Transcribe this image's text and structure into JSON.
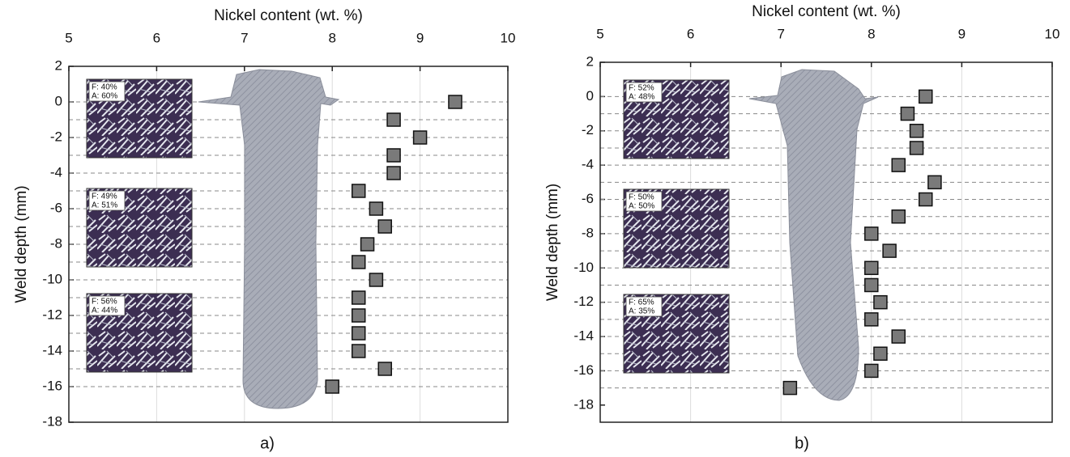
{
  "chart_data": [
    {
      "type": "scatter",
      "label": "a)",
      "xlabel": "Nickel content (wt. %)",
      "ylabel": "Weld depth (mm)",
      "xlim": [
        5,
        10
      ],
      "xticks": [
        5,
        6,
        7,
        8,
        9,
        10
      ],
      "ylim": [
        -18,
        2
      ],
      "yticks": [
        2,
        0,
        -2,
        -4,
        -6,
        -8,
        -10,
        -12,
        -14,
        -16,
        -18
      ],
      "grid": true,
      "color": "#7a7a7a",
      "x": [
        9.4,
        8.7,
        9.0,
        8.7,
        8.7,
        8.3,
        8.5,
        8.6,
        8.4,
        8.3,
        8.5,
        8.3,
        8.3,
        8.3,
        8.3,
        8.6,
        8.0
      ],
      "y": [
        0,
        -1,
        -2,
        -3,
        -4,
        -5,
        -6,
        -7,
        -8,
        -9,
        -10,
        -11,
        -12,
        -13,
        -14,
        -15,
        -16
      ],
      "annotations": [
        [
          "F: 40%",
          "A: 60%"
        ],
        [
          "F: 49%",
          "A: 51%"
        ],
        [
          "F: 56%",
          "A: 44%"
        ]
      ]
    },
    {
      "type": "scatter",
      "label": "b)",
      "xlabel": "Nickel content (wt. %)",
      "ylabel": "Weld depth (mm)",
      "xlim": [
        5,
        10
      ],
      "xticks": [
        5,
        6,
        7,
        8,
        9,
        10
      ],
      "ylim": [
        -19,
        2
      ],
      "yticks": [
        2,
        0,
        -2,
        -4,
        -6,
        -8,
        -10,
        -12,
        -14,
        -16,
        -18
      ],
      "grid": true,
      "color": "#7a7a7a",
      "x": [
        8.6,
        8.4,
        8.5,
        8.5,
        8.3,
        8.7,
        8.6,
        8.3,
        8.0,
        8.2,
        8.0,
        8.0,
        8.1,
        8.0,
        8.3,
        8.1,
        8.0,
        7.1
      ],
      "y": [
        0,
        -1,
        -2,
        -3,
        -4,
        -5,
        -6,
        -7,
        -8,
        -9,
        -10,
        -11,
        -12,
        -13,
        -14,
        -15,
        -16,
        -17
      ],
      "annotations": [
        [
          "F: 52%",
          "A: 48%"
        ],
        [
          "F: 50%",
          "A: 50%"
        ],
        [
          "F: 65%",
          "A: 35%"
        ]
      ]
    }
  ]
}
